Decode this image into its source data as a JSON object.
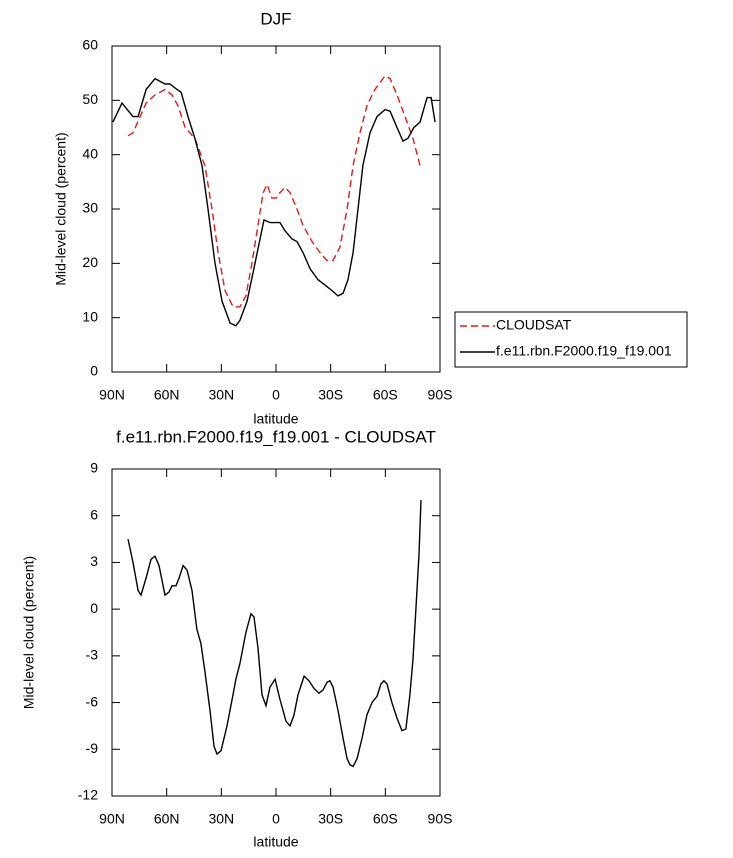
{
  "chart_data": [
    {
      "type": "line",
      "title": "DJF",
      "x_label": "latitude",
      "y_label": "Mid-level cloud (percent)",
      "xlim": [
        90,
        -90
      ],
      "xticks": [
        {
          "value": 90,
          "label": "90N"
        },
        {
          "value": 60,
          "label": "60N"
        },
        {
          "value": 30,
          "label": "30N"
        },
        0,
        {
          "value": -30,
          "label": "30S"
        },
        {
          "value": -60,
          "label": "60S"
        },
        {
          "value": -90,
          "label": "90S"
        }
      ],
      "ylim": [
        0,
        60
      ],
      "yticks": [
        0,
        10,
        20,
        30,
        40,
        50,
        60
      ],
      "legend": "right",
      "series": [
        {
          "name": "CLOUDSAT",
          "color": "#e41a1c",
          "line_style": "dashed",
          "x": [
            81.2,
            78.5,
            74.6,
            71.3,
            66.4,
            60.9,
            57.1,
            53.8,
            49.9,
            44.5,
            39,
            35.1,
            31.8,
            28,
            23.6,
            19.8,
            16.5,
            13.2,
            9.9,
            7.1,
            4.9,
            2.2,
            0,
            -2.2,
            -4.9,
            -7.7,
            -11.5,
            -14.8,
            -19.8,
            -24.1,
            -28,
            -31.3,
            -35.1,
            -39,
            -42.3,
            -46.1,
            -49.9,
            -54.3,
            -59.8,
            -62.6,
            -66.4,
            -70.8,
            -75.2,
            -79
          ],
          "values": [
            43.5,
            44,
            47,
            49.5,
            51,
            52,
            51,
            49,
            45,
            43,
            38,
            30,
            22,
            15,
            12,
            12,
            14,
            20,
            27,
            33,
            34.5,
            32,
            32,
            33,
            34,
            33,
            30,
            27,
            24,
            22,
            20.5,
            20.5,
            23,
            30,
            38,
            44,
            49,
            52,
            54.5,
            54,
            51,
            47,
            43,
            38
          ]
        },
        {
          "name": "f.e11.rbn.F2000.f19_f19.001",
          "color": "#000000",
          "line_style": "solid",
          "x": [
            89.5,
            84.5,
            78.5,
            75.7,
            71.3,
            66.4,
            60.9,
            58.2,
            54.3,
            52.1,
            48.3,
            44.5,
            40.6,
            37.3,
            33.5,
            29.6,
            25.2,
            22,
            19.8,
            15.9,
            11.5,
            6.6,
            3.3,
            -2.2,
            -4.9,
            -8.8,
            -11.5,
            -14.8,
            -18.7,
            -23,
            -26.9,
            -30.7,
            -34,
            -36.8,
            -39.5,
            -42.3,
            -45,
            -47.7,
            -51.6,
            -55.4,
            -59.8,
            -62.6,
            -66.4,
            -69.7,
            -72.4,
            -75.7,
            -79,
            -82.9,
            -85.1,
            -87.3
          ],
          "values": [
            46,
            49.5,
            47,
            47,
            52,
            54,
            53,
            53,
            52,
            51.5,
            47,
            43,
            38,
            30,
            20,
            13,
            9,
            8.5,
            9.5,
            13,
            20,
            28,
            27.5,
            27.5,
            26,
            24.5,
            24,
            22,
            19,
            17,
            16,
            15,
            14,
            14.5,
            17,
            22,
            30,
            38,
            44,
            47,
            48.3,
            48,
            45,
            42.5,
            43,
            45,
            46,
            50.5,
            50.5,
            46
          ]
        }
      ]
    },
    {
      "type": "line",
      "title": "f.e11.rbn.F2000.f19_f19.001 - CLOUDSAT",
      "x_label": "latitude",
      "y_label": "Mid-level cloud (percent)",
      "xlim": [
        90,
        -90
      ],
      "xticks": [
        {
          "value": 90,
          "label": "90N"
        },
        {
          "value": 60,
          "label": "60N"
        },
        {
          "value": 30,
          "label": "30N"
        },
        0,
        {
          "value": -30,
          "label": "30S"
        },
        {
          "value": -60,
          "label": "60S"
        },
        {
          "value": -90,
          "label": "90S"
        }
      ],
      "ylim": [
        -12,
        9
      ],
      "yticks": [
        -12,
        -9,
        -6,
        -3,
        0,
        3,
        6,
        9
      ],
      "series": [
        {
          "color": "#000000",
          "line_style": "solid",
          "x": [
            81.2,
            78.5,
            75.7,
            74.1,
            71.3,
            68.6,
            66.4,
            64.2,
            60.9,
            58.7,
            57.1,
            54.9,
            53.2,
            51,
            48.8,
            46.1,
            43.4,
            41.2,
            39,
            36.2,
            34,
            32.4,
            30.2,
            26.9,
            24.1,
            22,
            19.8,
            16.5,
            13.7,
            12.1,
            9.9,
            7.7,
            5.5,
            3.3,
            0.5,
            -2.2,
            -5.5,
            -7.7,
            -9.9,
            -12.1,
            -15.4,
            -18.1,
            -20.9,
            -23.6,
            -25.8,
            -28,
            -29.6,
            -31.3,
            -34,
            -36.8,
            -39,
            -40.6,
            -42.3,
            -44.5,
            -47.2,
            -49.9,
            -52.7,
            -55.4,
            -57.6,
            -59.2,
            -60.9,
            -63.6,
            -66.4,
            -69.1,
            -71.3,
            -73.5,
            -75.2,
            -76.8,
            -78.5,
            -79.6
          ],
          "values": [
            4.5,
            3,
            1.2,
            0.9,
            2,
            3.2,
            3.4,
            2.8,
            0.9,
            1.1,
            1.5,
            1.5,
            2,
            2.8,
            2.5,
            1.2,
            -1.3,
            -2.2,
            -4,
            -6.5,
            -8.8,
            -9.3,
            -9.1,
            -7.5,
            -5.8,
            -4.5,
            -3.5,
            -1.5,
            -0.3,
            -0.5,
            -2.5,
            -5.5,
            -6.2,
            -5,
            -4.5,
            -5.8,
            -7.2,
            -7.5,
            -6.8,
            -5.5,
            -4.3,
            -4.6,
            -5.1,
            -5.4,
            -5.2,
            -4.7,
            -4.6,
            -5,
            -6.5,
            -8.3,
            -9.6,
            -10,
            -10.1,
            -9.6,
            -8.3,
            -6.8,
            -6,
            -5.6,
            -4.8,
            -4.6,
            -4.8,
            -6,
            -7,
            -7.8,
            -7.7,
            -5.5,
            -3.2,
            0,
            3.5,
            7
          ]
        }
      ]
    }
  ]
}
